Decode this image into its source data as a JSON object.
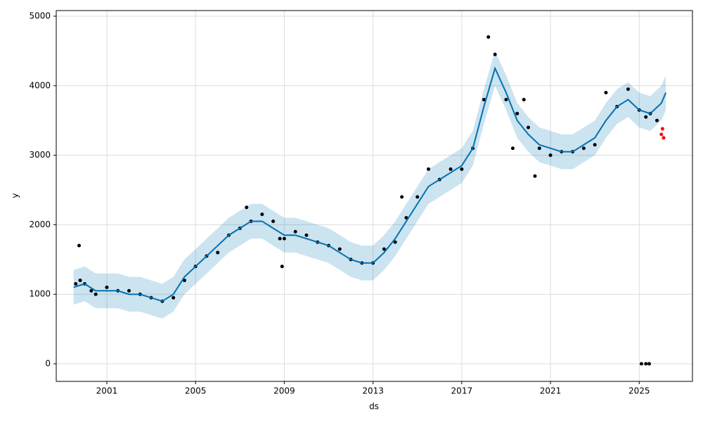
{
  "chart_data": {
    "type": "forecast",
    "x_label": "ds",
    "y_label": "y",
    "xlim": [
      1998.72,
      2027.4
    ],
    "ylim": [
      -253,
      5081
    ],
    "xticks": [
      2001,
      2005,
      2009,
      2013,
      2017,
      2021,
      2025
    ],
    "yticks": [
      0,
      1000,
      2000,
      3000,
      4000,
      5000
    ],
    "grid": true,
    "series": [
      {
        "type": "band",
        "color": "#0072b2",
        "x": [
          1999.5,
          2000,
          2000.5,
          2001,
          2001.5,
          2002,
          2002.5,
          2003,
          2003.5,
          2004,
          2004.5,
          2005,
          2005.5,
          2006,
          2006.5,
          2007,
          2007.5,
          2008,
          2008.5,
          2009,
          2009.5,
          2010,
          2010.5,
          2011,
          2011.5,
          2012,
          2012.5,
          2013,
          2013.5,
          2014,
          2014.5,
          2015,
          2015.5,
          2016,
          2016.5,
          2017,
          2017.5,
          2018,
          2018.5,
          2019,
          2019.5,
          2020,
          2020.5,
          2021,
          2021.5,
          2022,
          2022.5,
          2023,
          2023.5,
          2024,
          2024.5,
          2025,
          2025.5,
          2026,
          2026.2
        ],
        "lower": [
          850,
          900,
          800,
          800,
          800,
          750,
          750,
          700,
          650,
          750,
          1000,
          1150,
          1300,
          1450,
          1600,
          1700,
          1800,
          1800,
          1700,
          1600,
          1600,
          1550,
          1500,
          1450,
          1350,
          1250,
          1200,
          1200,
          1350,
          1550,
          1800,
          2050,
          2300,
          2400,
          2500,
          2600,
          2850,
          3450,
          4000,
          3650,
          3250,
          3050,
          2900,
          2850,
          2800,
          2800,
          2900,
          3000,
          3250,
          3450,
          3550,
          3400,
          3350,
          3500,
          3650
        ],
        "upper": [
          1350,
          1400,
          1300,
          1300,
          1300,
          1250,
          1250,
          1200,
          1150,
          1250,
          1500,
          1650,
          1800,
          1950,
          2100,
          2200,
          2300,
          2300,
          2200,
          2100,
          2100,
          2050,
          2000,
          1950,
          1850,
          1750,
          1700,
          1700,
          1850,
          2050,
          2300,
          2550,
          2800,
          2900,
          3000,
          3100,
          3350,
          3950,
          4500,
          4150,
          3750,
          3550,
          3400,
          3350,
          3300,
          3300,
          3400,
          3500,
          3750,
          3950,
          4050,
          3900,
          3850,
          4000,
          4150
        ]
      },
      {
        "type": "scatter",
        "color": "#000000",
        "x": [
          1999.6,
          1999.75,
          1999.8,
          2000.0,
          2000.3,
          2000.5,
          2001.0,
          2001.5,
          2002.0,
          2002.5,
          2003.0,
          2003.5,
          2004.0,
          2004.5,
          2005.0,
          2005.5,
          2006.0,
          2006.5,
          2007.0,
          2007.3,
          2007.5,
          2008.0,
          2008.5,
          2008.8,
          2008.9,
          2009.0,
          2009.5,
          2010.0,
          2010.5,
          2011.0,
          2011.5,
          2012.0,
          2012.5,
          2013.0,
          2013.5,
          2014.0,
          2014.3,
          2014.5,
          2015.0,
          2015.5,
          2016.0,
          2016.5,
          2017.0,
          2017.5,
          2018.0,
          2018.2,
          2018.5,
          2019.0,
          2019.3,
          2019.5,
          2019.8,
          2020.0,
          2020.3,
          2020.5,
          2021.0,
          2021.5,
          2022.0,
          2022.5,
          2023.0,
          2023.5,
          2024.0,
          2024.5,
          2025.0,
          2025.3,
          2025.5,
          2025.8,
          2025.1,
          2025.3,
          2025.45
        ],
        "values": [
          1150,
          1700,
          1200,
          1150,
          1050,
          1000,
          1100,
          1050,
          1050,
          1000,
          950,
          900,
          950,
          1200,
          1400,
          1550,
          1600,
          1850,
          1950,
          2250,
          2050,
          2150,
          2050,
          1800,
          1400,
          1800,
          1900,
          1850,
          1750,
          1700,
          1650,
          1500,
          1450,
          1450,
          1650,
          1750,
          2400,
          2100,
          2400,
          2800,
          2650,
          2800,
          2800,
          3100,
          3800,
          4700,
          4450,
          3800,
          3100,
          3600,
          3800,
          3400,
          2700,
          3100,
          3000,
          3050,
          3050,
          3100,
          3150,
          3900,
          3700,
          3950,
          3650,
          3550,
          3600,
          3500,
          0,
          0,
          0
        ]
      },
      {
        "type": "line",
        "color": "#0072b2",
        "x": [
          1999.5,
          2000,
          2000.5,
          2001,
          2001.5,
          2002,
          2002.5,
          2003,
          2003.5,
          2004,
          2004.5,
          2005,
          2005.5,
          2006,
          2006.5,
          2007,
          2007.5,
          2008,
          2008.5,
          2009,
          2009.5,
          2010,
          2010.5,
          2011,
          2011.5,
          2012,
          2012.5,
          2013,
          2013.5,
          2014,
          2014.5,
          2015,
          2015.5,
          2016,
          2016.5,
          2017,
          2017.5,
          2018,
          2018.5,
          2019,
          2019.5,
          2020,
          2020.5,
          2021,
          2021.5,
          2022,
          2022.5,
          2023,
          2023.5,
          2024,
          2024.5,
          2025,
          2025.5,
          2026,
          2026.2
        ],
        "values": [
          1100,
          1150,
          1050,
          1050,
          1050,
          1000,
          1000,
          950,
          900,
          1000,
          1250,
          1400,
          1550,
          1700,
          1850,
          1950,
          2050,
          2050,
          1950,
          1850,
          1850,
          1800,
          1750,
          1700,
          1600,
          1500,
          1450,
          1450,
          1600,
          1800,
          2050,
          2300,
          2550,
          2650,
          2750,
          2850,
          3100,
          3700,
          4250,
          3900,
          3500,
          3300,
          3150,
          3100,
          3050,
          3050,
          3150,
          3250,
          3500,
          3700,
          3800,
          3650,
          3600,
          3750,
          3900
        ]
      },
      {
        "type": "scatter",
        "color": "#ff0000",
        "x": [
          2026.0,
          2026.05,
          2026.1
        ],
        "values": [
          3300,
          3380,
          3250
        ]
      }
    ]
  }
}
